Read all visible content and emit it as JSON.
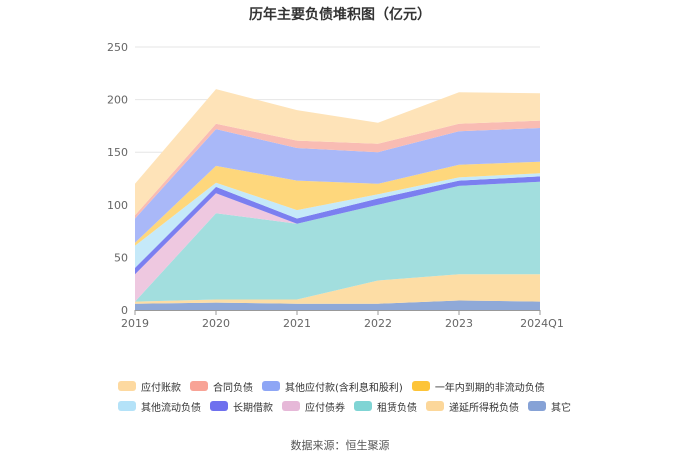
{
  "title": "历年主要负债堆积图（亿元）",
  "source": "数据来源：恒生聚源",
  "chart_data": {
    "type": "area",
    "stacked": true,
    "categories": [
      "2019",
      "2020",
      "2021",
      "2022",
      "2023",
      "2024Q1"
    ],
    "ylim": [
      0,
      250
    ],
    "yticks": [
      0,
      50,
      100,
      150,
      200,
      250
    ],
    "grid": true,
    "legend_position": "bottom",
    "series": [
      {
        "name": "其它",
        "color": "#8fa9d8",
        "values": [
          6,
          7,
          6,
          6,
          9,
          8
        ]
      },
      {
        "name": "递延所得税负债",
        "color": "#fddda5",
        "values": [
          2,
          3,
          4,
          22,
          25,
          26
        ]
      },
      {
        "name": "租赁负债",
        "color": "#a2dede",
        "values": [
          0,
          82,
          72,
          72,
          84,
          88
        ]
      },
      {
        "name": "应付债券",
        "color": "#eec8e0",
        "values": [
          26,
          19,
          0,
          0,
          0,
          0
        ]
      },
      {
        "name": "长期借款",
        "color": "#7b7ff0",
        "values": [
          6,
          6,
          5,
          6,
          5,
          5
        ]
      },
      {
        "name": "其他流动负债",
        "color": "#c5e9f9",
        "values": [
          21,
          4,
          8,
          4,
          3,
          3
        ]
      },
      {
        "name": "一年内到期的非流动负债",
        "color": "#fed77c",
        "values": [
          3,
          16,
          28,
          10,
          12,
          11
        ]
      },
      {
        "name": "其他应付款(含利息和股利)",
        "color": "#a9b8f8",
        "values": [
          23,
          35,
          31,
          30,
          32,
          32
        ]
      },
      {
        "name": "合同负债",
        "color": "#f9bcb3",
        "values": [
          3,
          5,
          7,
          8,
          7,
          7
        ]
      },
      {
        "name": "应付账款",
        "color": "#fee3b8",
        "values": [
          30,
          33,
          29,
          20,
          30,
          26
        ]
      }
    ],
    "legend_order": [
      "应付账款",
      "合同负债",
      "其他应付款(含利息和股利)",
      "一年内到期的非流动负债",
      "其他流动负债",
      "长期借款",
      "应付债券",
      "租赁负债",
      "递延所得税负债",
      "其它"
    ],
    "legend_colors": {
      "应付账款": "#fdd9a0",
      "合同负债": "#f8a396",
      "其他应付款(含利息和股利)": "#8ea6f5",
      "一年内到期的非流动负债": "#fdc438",
      "其他流动负债": "#b4e2f8",
      "长期借款": "#6f70ee",
      "应付债券": "#e6b8d8",
      "租赁负债": "#7fd4d4",
      "递延所得税负债": "#fcd79a",
      "其它": "#86a2d6"
    }
  }
}
